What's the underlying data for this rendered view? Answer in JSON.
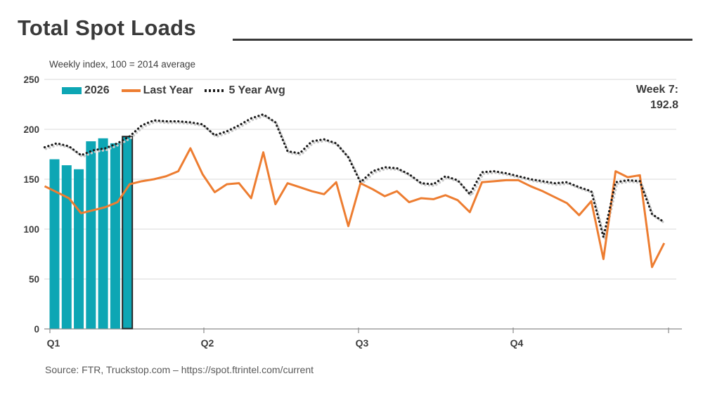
{
  "header": {
    "title": "Total Spot Loads",
    "subtitle": "Weekly index, 100 = 2014 average"
  },
  "annotation": {
    "line1": "Week 7:",
    "line2": "192.8"
  },
  "source": {
    "text": "Source: FTR, Truckstop.com – https://spot.ftrintel.com/current"
  },
  "chart_data": {
    "type": "bar",
    "combo": "bar+line+dotted-line",
    "title": "Total Spot Loads",
    "subtitle": "Weekly index, 100 = 2014 average",
    "x_unit": "week",
    "weeks": 52,
    "quarter_labels": [
      "Q1",
      "Q2",
      "Q3",
      "Q4"
    ],
    "ylim": [
      0,
      250
    ],
    "yticks": [
      0,
      50,
      100,
      150,
      200,
      250
    ],
    "grid": "horizontal",
    "legend_position": "top-left",
    "current_week": {
      "label": "Week 7:",
      "value": 192.8
    },
    "series": [
      {
        "name": "2026",
        "type": "bar",
        "color": "#0DA6B4",
        "weeks": [
          1,
          2,
          3,
          4,
          5,
          6,
          7
        ],
        "values": [
          170,
          164,
          160,
          188,
          191,
          186,
          192.8
        ],
        "highlight_last_border": "#262626"
      },
      {
        "name": "Last Year",
        "type": "line",
        "color": "#ED7D31",
        "values": [
          143,
          137,
          131,
          116,
          119,
          122,
          127,
          145,
          148,
          150,
          153,
          158,
          181,
          155,
          137,
          145,
          146,
          131,
          177,
          125,
          146,
          142,
          138,
          135,
          147,
          103,
          146,
          140,
          133,
          138,
          127,
          131,
          130,
          134,
          129,
          117,
          147,
          148,
          149,
          149,
          143,
          138,
          132,
          126,
          114,
          128,
          70,
          158,
          152,
          154,
          62,
          86
        ]
      },
      {
        "name": "5 Year Avg",
        "type": "dotted-line",
        "color": "#1A1A1A",
        "values": [
          182,
          186,
          183,
          174,
          179,
          181,
          186,
          193,
          204,
          209,
          208,
          208,
          207,
          205,
          194,
          198,
          204,
          211,
          215,
          207,
          178,
          176,
          188,
          190,
          186,
          172,
          147,
          158,
          162,
          161,
          155,
          146,
          145,
          153,
          149,
          135,
          157,
          158,
          156,
          153,
          150,
          148,
          146,
          147,
          142,
          138,
          92,
          147,
          149,
          148,
          115,
          107
        ]
      }
    ]
  }
}
